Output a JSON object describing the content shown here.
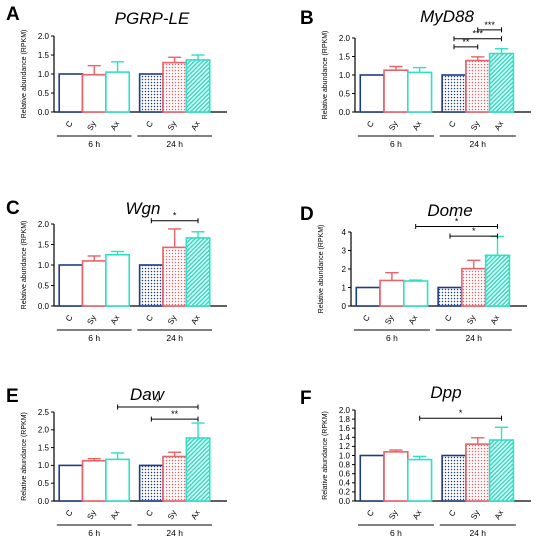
{
  "colors": {
    "C": "#1f3c88",
    "Sy": "#e8636a",
    "Ax": "#2ee0c4",
    "axis": "#000000"
  },
  "chart_data": [
    {
      "letter": "A",
      "title": "PGRP-LE",
      "type": "bar",
      "ylabel": "Relative abundance (RPKM)",
      "ylim": [
        0,
        2.0
      ],
      "yticks": [
        "0.0",
        "0.5",
        "1.0",
        "1.5",
        "2.0"
      ],
      "categories": [
        "C",
        "Sy",
        "Ax",
        "C",
        "Sy",
        "Ax"
      ],
      "groups": [
        "6 h",
        "24 h"
      ],
      "values": [
        1.0,
        0.98,
        1.05,
        1.0,
        1.3,
        1.37
      ],
      "errors": [
        0.0,
        0.24,
        0.27,
        0.0,
        0.14,
        0.13
      ],
      "significance": []
    },
    {
      "letter": "B",
      "title": "MyD88",
      "type": "bar",
      "ylabel": "Relative abundance (RPKM)",
      "ylim": [
        0,
        2.0
      ],
      "yticks": [
        "0.0",
        "0.5",
        "1.0",
        "1.5",
        "2.0"
      ],
      "categories": [
        "C",
        "Sy",
        "Ax",
        "C",
        "Sy",
        "Ax"
      ],
      "groups": [
        "6 h",
        "24 h"
      ],
      "values": [
        1.0,
        1.13,
        1.07,
        1.0,
        1.39,
        1.58
      ],
      "errors": [
        0.0,
        0.1,
        0.13,
        0.0,
        0.1,
        0.13
      ],
      "significance": [
        {
          "from": 4,
          "to": 5,
          "label": "***",
          "y": 2.22
        },
        {
          "from": 3,
          "to": 5,
          "label": "***",
          "y": 1.98
        },
        {
          "from": 3,
          "to": 4,
          "label": "**",
          "y": 1.76
        }
      ]
    },
    {
      "letter": "C",
      "title": "Wgn",
      "type": "bar",
      "ylabel": "Relative abundance (RPKM)",
      "ylim": [
        0,
        2.0
      ],
      "yticks": [
        "0.0",
        "0.5",
        "1.0",
        "1.5",
        "2.0"
      ],
      "categories": [
        "C",
        "Sy",
        "Ax",
        "C",
        "Sy",
        "Ax"
      ],
      "groups": [
        "6 h",
        "24 h"
      ],
      "values": [
        1.0,
        1.1,
        1.25,
        1.0,
        1.43,
        1.66
      ],
      "errors": [
        0.0,
        0.12,
        0.08,
        0.0,
        0.45,
        0.15
      ],
      "significance": [
        {
          "from": 3,
          "to": 5,
          "label": "*",
          "y": 2.08
        }
      ]
    },
    {
      "letter": "D",
      "title": "Dome",
      "type": "bar",
      "ylabel": "Relative abundance (RPKM)",
      "ylim": [
        0,
        4
      ],
      "yticks": [
        "0",
        "1",
        "2",
        "3",
        "4"
      ],
      "categories": [
        "C",
        "Sy",
        "Ax",
        "C",
        "Sy",
        "Ax"
      ],
      "groups": [
        "6 h",
        "24 h"
      ],
      "values": [
        1.0,
        1.38,
        1.35,
        1.0,
        2.02,
        2.74
      ],
      "errors": [
        0.0,
        0.42,
        0.05,
        0.0,
        0.45,
        1.02
      ],
      "significance": [
        {
          "from": 2,
          "to": 5,
          "label": "*",
          "y": 4.3
        },
        {
          "from": 3,
          "to": 5,
          "label": "*",
          "y": 3.78
        }
      ]
    },
    {
      "letter": "E",
      "title": "Daw",
      "type": "bar",
      "ylabel": "Relative abundance (RPKM)",
      "ylim": [
        0,
        2.5
      ],
      "yticks": [
        "0.0",
        "0.5",
        "1.0",
        "1.5",
        "2.0",
        "2.5"
      ],
      "categories": [
        "C",
        "Sy",
        "Ax",
        "C",
        "Sy",
        "Ax"
      ],
      "groups": [
        "6 h",
        "24 h"
      ],
      "values": [
        1.0,
        1.13,
        1.17,
        1.0,
        1.25,
        1.77
      ],
      "errors": [
        0.0,
        0.06,
        0.18,
        0.0,
        0.12,
        0.42
      ],
      "significance": [
        {
          "from": 2,
          "to": 5,
          "label": "*",
          "y": 2.64
        },
        {
          "from": 3,
          "to": 5,
          "label": "**",
          "y": 2.3
        }
      ]
    },
    {
      "letter": "F",
      "title": "Dpp",
      "type": "bar",
      "ylabel": "Relative abundance (RPKM)",
      "ylim": [
        0,
        2.0
      ],
      "yticks": [
        "0.0",
        "0.2",
        "0.4",
        "0.6",
        "0.8",
        "1.0",
        "1.2",
        "1.4",
        "1.6",
        "1.8",
        "2.0"
      ],
      "categories": [
        "C",
        "Sy",
        "Ax",
        "C",
        "Sy",
        "Ax"
      ],
      "groups": [
        "6 h",
        "24 h"
      ],
      "values": [
        1.0,
        1.08,
        0.91,
        1.0,
        1.25,
        1.34
      ],
      "errors": [
        0.0,
        0.04,
        0.07,
        0.0,
        0.14,
        0.28
      ],
      "significance": [
        {
          "from": 2,
          "to": 5,
          "label": "*",
          "y": 1.82
        }
      ]
    }
  ]
}
